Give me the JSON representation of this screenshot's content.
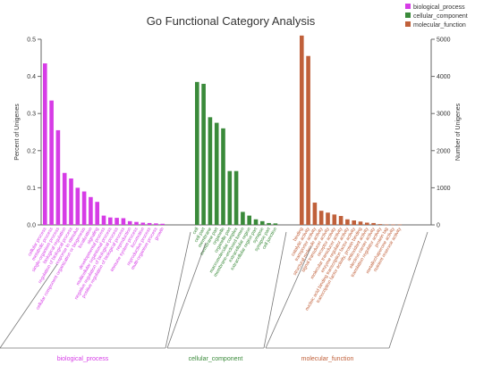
{
  "chart_data": {
    "type": "bar",
    "title": "Go Functional Category Analysis",
    "ylabel_left": "Percent of Unigenes",
    "ylabel_right": "Number of Unigenes",
    "ylim_left": [
      0,
      0.5
    ],
    "yticks_left": [
      "0.0",
      "0.1",
      "0.2",
      "0.3",
      "0.4",
      "0.5"
    ],
    "ylim_right": [
      0,
      5000
    ],
    "yticks_right": [
      "0",
      "1000",
      "2000",
      "3000",
      "4000",
      "5000"
    ],
    "legend_position": "top-right",
    "series": [
      {
        "name": "biological_process",
        "color": "#d63ce6",
        "categories": [
          "cellular process",
          "metabolic process",
          "single-organism process",
          "biological regulation",
          "regulation of biological process",
          "response to stimulus",
          "cellular component organization or biogenesis",
          "localization",
          "signaling",
          "developmental process",
          "multicellular organismal process",
          "negative regulation of biological process",
          "positive regulation of biological process",
          "reproduction",
          "immune system process",
          "locomotion",
          "reproductive process",
          "multi-organism process",
          "growth"
        ],
        "values": [
          0.435,
          0.335,
          0.255,
          0.14,
          0.125,
          0.1,
          0.09,
          0.075,
          0.062,
          0.025,
          0.02,
          0.019,
          0.018,
          0.01,
          0.008,
          0.006,
          0.005,
          0.004,
          0.003
        ]
      },
      {
        "name": "cellular_component",
        "color": "#3a8a3a",
        "categories": [
          "cell",
          "cell part",
          "membrane",
          "membrane part",
          "organelle",
          "organelle part",
          "macromolecular complex",
          "membrane-enclosed lumen",
          "extracellular region",
          "extracellular region part",
          "synapse",
          "synapse part",
          "cell junction"
        ],
        "values": [
          0.385,
          0.38,
          0.29,
          0.275,
          0.26,
          0.145,
          0.145,
          0.035,
          0.025,
          0.015,
          0.01,
          0.005,
          0.004
        ]
      },
      {
        "name": "molecular_function",
        "color": "#c0603a",
        "categories": [
          "binding",
          "catalytic activity",
          "transporter activity",
          "structural molecule activity",
          "signal transducer activity",
          "receptor activity",
          "molecular transducer activity",
          "enzyme regulator activity",
          "nucleic acid binding transcription factor activity",
          "transcription factor activity, protein binding",
          "antioxidant activity",
          "electron carrier activity",
          "translation regulator activity",
          "protein tag",
          "metallochaperone activity",
          "nutrient reservoir activity"
        ],
        "values": [
          0.51,
          0.455,
          0.06,
          0.038,
          0.033,
          0.028,
          0.024,
          0.015,
          0.012,
          0.009,
          0.006,
          0.005,
          0.002,
          0.001,
          0.001,
          0.001
        ]
      }
    ]
  }
}
